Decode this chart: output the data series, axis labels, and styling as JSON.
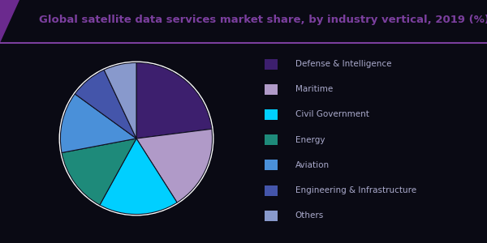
{
  "title": "Global satellite data services market share, by industry vertical, 2019 (%)",
  "title_color": "#7b3f9e",
  "background_color": "#0a0a14",
  "pie_bg_color": "#ffffff",
  "slices": [
    {
      "label": "Defense & Intelligence",
      "value": 23,
      "color": "#3d1f6e"
    },
    {
      "label": "Maritime",
      "value": 18,
      "color": "#b09ac8"
    },
    {
      "label": "Civil Government",
      "value": 17,
      "color": "#00cfff"
    },
    {
      "label": "Energy",
      "value": 14,
      "color": "#1e8a7a"
    },
    {
      "label": "Aviation",
      "value": 13,
      "color": "#4a90d9"
    },
    {
      "label": "Engineering & Infrastructure",
      "value": 8,
      "color": "#4455aa"
    },
    {
      "label": "Others",
      "value": 7,
      "color": "#8899cc"
    }
  ],
  "wedge_edge_color": "#111122",
  "legend_text_color": "#aaaacc",
  "title_fontsize": 9.5,
  "legend_fontsize": 7.5
}
